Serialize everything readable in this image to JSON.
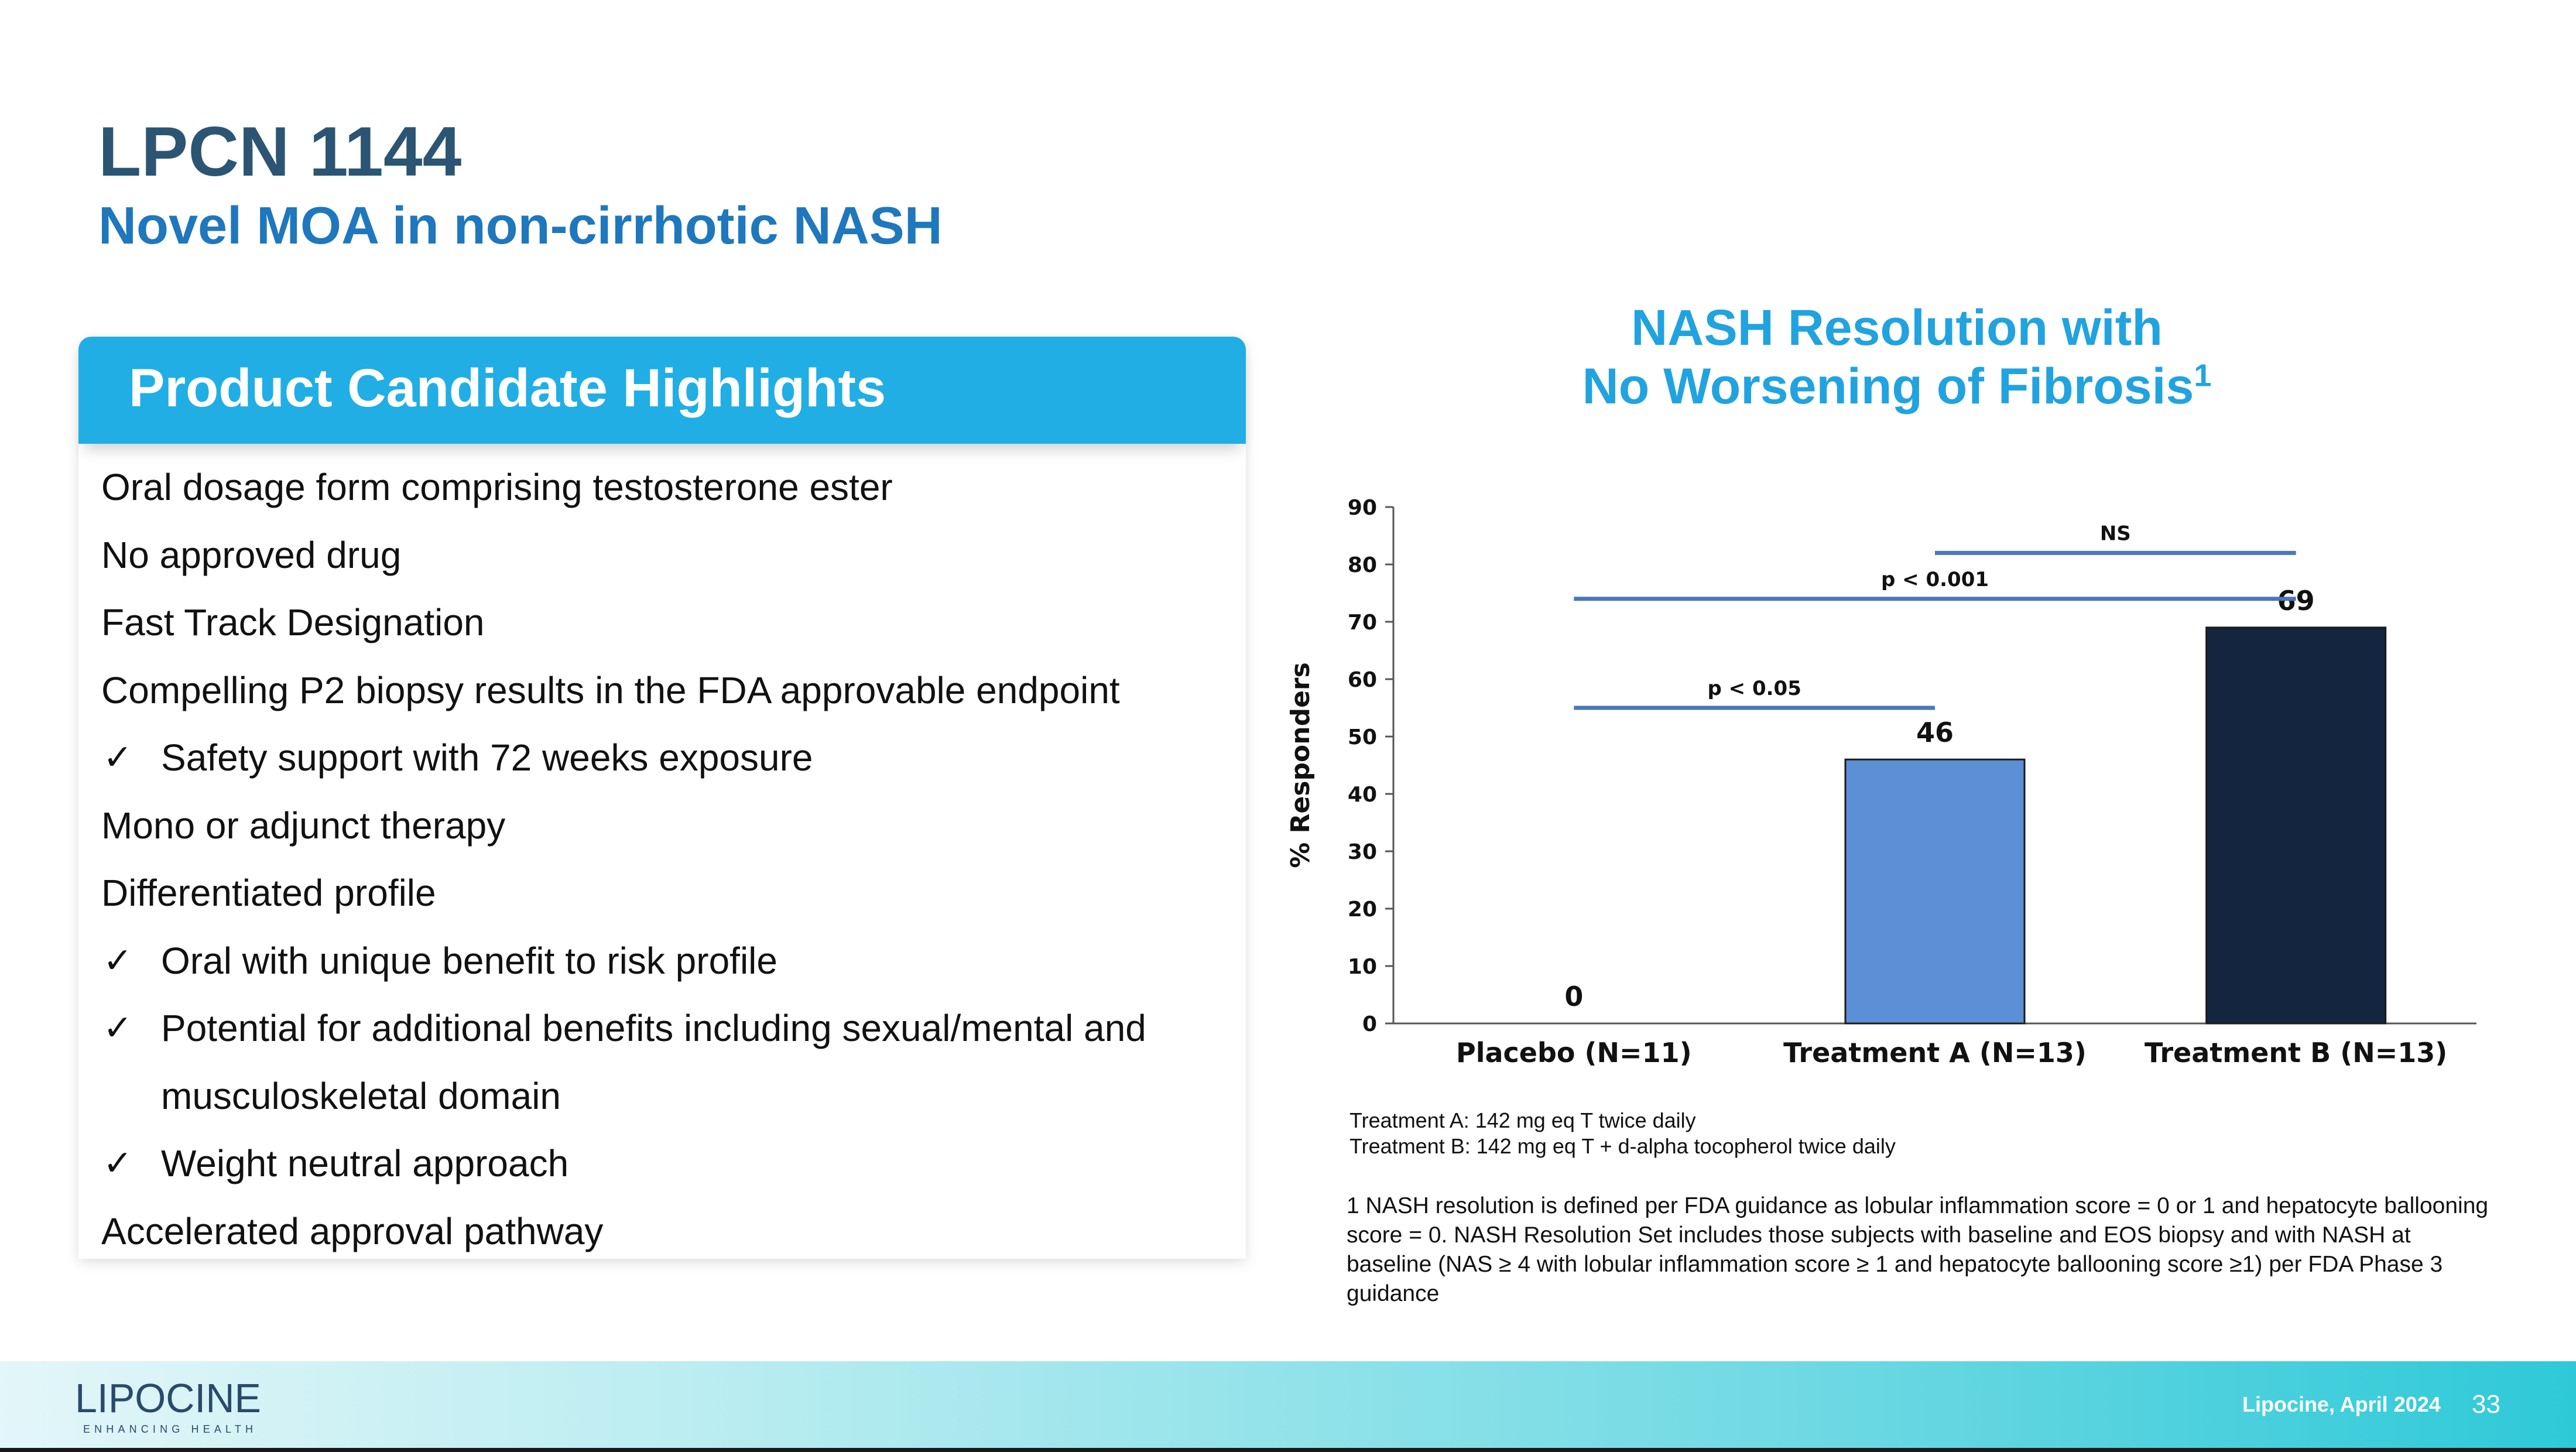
{
  "title": "LPCN 1144",
  "subtitle": "Novel MOA in non-cirrhotic NASH",
  "highlights": {
    "header": "Product Candidate Highlights",
    "items": [
      {
        "text": "Oral dosage form comprising testosterone ester",
        "check": false
      },
      {
        "text": "No approved drug",
        "check": false
      },
      {
        "text": "Fast Track Designation",
        "check": false
      },
      {
        "text": "Compelling P2 biopsy results in the FDA approvable endpoint",
        "check": false
      },
      {
        "text": "Safety support with 72 weeks exposure",
        "check": true
      },
      {
        "text": "Mono or adjunct therapy",
        "check": false
      },
      {
        "text": "Differentiated profile",
        "check": false
      },
      {
        "text": "Oral with unique benefit to risk profile",
        "check": true
      },
      {
        "text": "Potential for additional benefits including sexual/mental and",
        "check": true
      },
      {
        "text": "musculoskeletal domain",
        "check": false,
        "continuation": true
      },
      {
        "text": "Weight neutral approach",
        "check": true
      },
      {
        "text": "Accelerated approval pathway",
        "check": false
      }
    ],
    "check_symbol": "✓"
  },
  "chart_data": {
    "type": "bar",
    "title_line1": "NASH Resolution with",
    "title_line2": "No Worsening of Fibrosis",
    "title_sup": "1",
    "categories": [
      "Placebo (N=11)",
      "Treatment A (N=13)",
      "Treatment B (N=13)"
    ],
    "values": [
      0,
      46,
      69
    ],
    "data_labels": [
      "0",
      "46",
      "69"
    ],
    "bar_colors": [
      "#5b8fd6",
      "#5b8fd6",
      "#13253f"
    ],
    "ylabel": "% Responders",
    "xlabel": "",
    "ylim": [
      0,
      90
    ],
    "yticks": [
      0,
      10,
      20,
      30,
      40,
      50,
      60,
      70,
      80,
      90
    ],
    "grid": false,
    "legend": "none",
    "comparisons": [
      {
        "label": "p < 0.05",
        "from": 0,
        "to": 1,
        "y": 55
      },
      {
        "label": "p < 0.001",
        "from": 0,
        "to": 2,
        "y": 74
      },
      {
        "label": "NS",
        "from": 1,
        "to": 2,
        "y": 82
      }
    ],
    "comparison_color": "#4a78b8"
  },
  "notes": {
    "treatment_a": "Treatment A: 142 mg eq T twice daily",
    "treatment_b": "Treatment B: 142 mg eq T + d-alpha tocopherol twice daily"
  },
  "footnote": "1 NASH resolution is defined per FDA guidance as lobular inflammation score = 0 or 1 and hepatocyte ballooning score = 0. NASH Resolution Set includes those subjects with baseline and EOS biopsy and with NASH at baseline (NAS ≥ 4 with lobular  inflammation score ≥ 1 and hepatocyte ballooning score ≥1) per FDA Phase 3 guidance",
  "footer": {
    "logo_text": "LIPOCINE",
    "logo_tagline": "ENHANCING HEALTH",
    "date": "Lipocine, April 2024",
    "page": "33"
  }
}
